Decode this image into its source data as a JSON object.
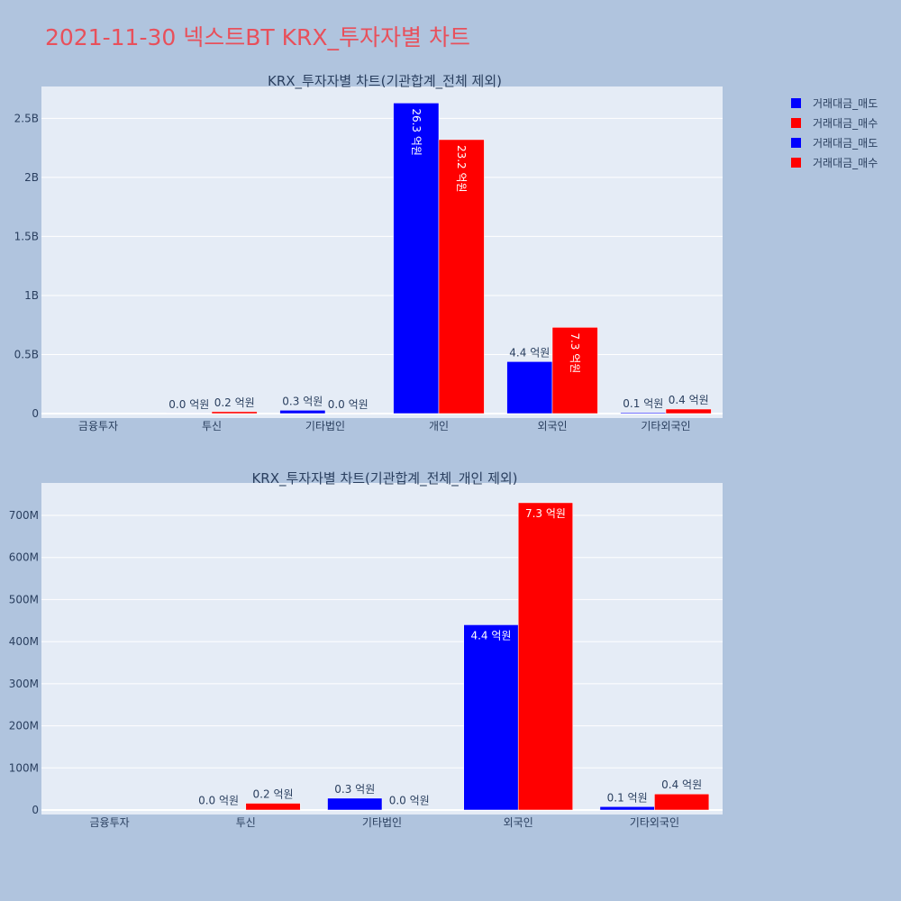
{
  "page_title": "2021-11-30 넥스트BT KRX_투자자별 차트",
  "legend": [
    {
      "label": "거래대금_매도",
      "color": "#0000ff"
    },
    {
      "label": "거래대금_매수",
      "color": "#ff0000"
    },
    {
      "label": "거래대금_매도",
      "color": "#0000ff"
    },
    {
      "label": "거래대금_매수",
      "color": "#ff0000"
    }
  ],
  "colors": {
    "sell": "#0000ff",
    "buy": "#ff0000",
    "plot_bg": "#e5ecf6",
    "page_bg": "#b0c4de",
    "title": "#e8505b"
  },
  "chart_data": [
    {
      "type": "bar",
      "title": "KRX_투자자별 차트(기관합계_전체 제외)",
      "categories": [
        "금융투자",
        "투신",
        "기타법인",
        "개인",
        "외국인",
        "기타외국인"
      ],
      "series": [
        {
          "name": "거래대금_매도",
          "values": [
            0,
            1000000,
            28000000,
            2630000000,
            440000000,
            8000000
          ],
          "labels": [
            "",
            "0.0 억원",
            "0.3 억원",
            "26.3 억원",
            "4.4 억원",
            "0.1 억원"
          ]
        },
        {
          "name": "거래대금_매수",
          "values": [
            0,
            16000000,
            1000000,
            2320000000,
            730000000,
            38000000
          ],
          "labels": [
            "",
            "0.2 억원",
            "0.0 억원",
            "23.2 억원",
            "7.3 억원",
            "0.4 억원"
          ]
        }
      ],
      "ylim": [
        0,
        2770000000
      ],
      "yticks": [
        0,
        500000000,
        1000000000,
        1500000000,
        2000000000,
        2500000000
      ],
      "ytick_labels": [
        "0",
        "0.5B",
        "1B",
        "1.5B",
        "2B",
        "2.5B"
      ],
      "inside_label_style": "vertical",
      "grid": true
    },
    {
      "type": "bar",
      "title": "KRX_투자자별 차트(기관합계_전체_개인 제외)",
      "categories": [
        "금융투자",
        "투신",
        "기타법인",
        "외국인",
        "기타외국인"
      ],
      "series": [
        {
          "name": "거래대금_매도",
          "values": [
            0,
            1000000,
            28000000,
            440000000,
            8000000
          ],
          "labels": [
            "",
            "0.0 억원",
            "0.3 억원",
            "4.4 억원",
            "0.1 억원"
          ]
        },
        {
          "name": "거래대금_매수",
          "values": [
            0,
            16000000,
            1000000,
            730000000,
            38000000
          ],
          "labels": [
            "",
            "0.2 억원",
            "0.0 억원",
            "7.3 억원",
            "0.4 억원"
          ]
        }
      ],
      "ylim": [
        0,
        777000000
      ],
      "yticks": [
        0,
        100000000,
        200000000,
        300000000,
        400000000,
        500000000,
        600000000,
        700000000
      ],
      "ytick_labels": [
        "0",
        "100M",
        "200M",
        "300M",
        "400M",
        "500M",
        "600M",
        "700M"
      ],
      "inside_label_style": "horizontal",
      "grid": true
    }
  ]
}
